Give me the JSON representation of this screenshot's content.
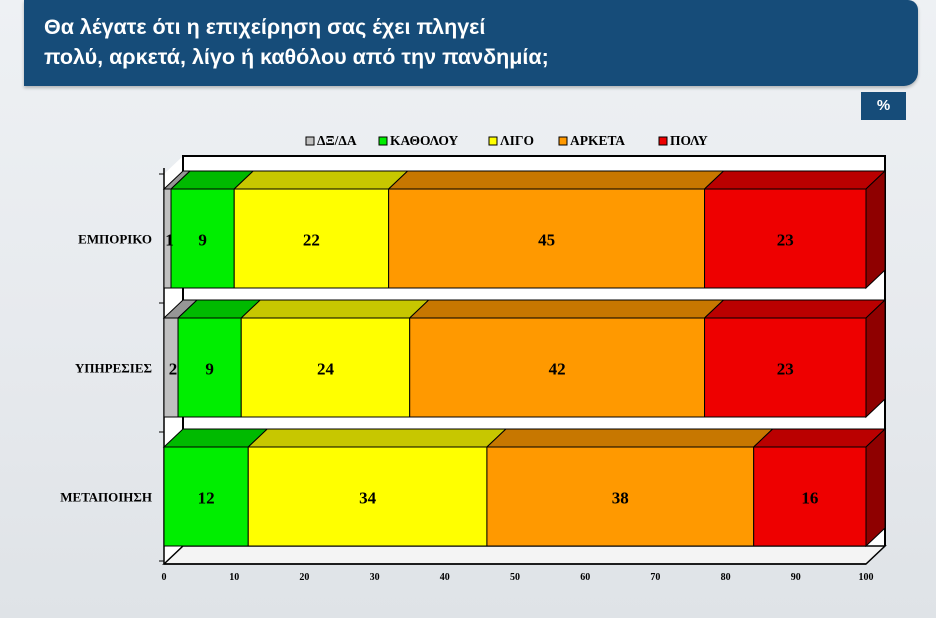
{
  "header": {
    "title": "Θα λέγατε ότι η επιχείρηση σας έχει πληγεί\nπολύ, αρκετά, λίγο ή καθόλου από την πανδημία;"
  },
  "unit_badge": "%",
  "colors": {
    "header_bg": "#164c79",
    "ΔΞ/ΔΑ": "#c0c0c0",
    "ΚΑΘΟΛΟΥ": "#00ee00",
    "ΛΙΓΟ": "#ffff00",
    "ΑΡΚΕΤΑ": "#ff9900",
    "ΠΟΛΥ": "#ee0000"
  },
  "chart_data": {
    "type": "bar",
    "orientation": "horizontal",
    "stacked": true,
    "style": "3d",
    "categories": [
      "ΕΜΠΟΡΙΚΟ",
      "ΥΠΗΡΕΣΙΕΣ",
      "ΜΕΤΑΠΟΙΗΣΗ"
    ],
    "series": [
      {
        "name": "ΔΞ/ΔΑ",
        "values": [
          1,
          2,
          0
        ],
        "color": "#c0c0c0"
      },
      {
        "name": "ΚΑΘΟΛΟΥ",
        "values": [
          9,
          9,
          12
        ],
        "color": "#00ee00"
      },
      {
        "name": "ΛΙΓΟ",
        "values": [
          22,
          24,
          34
        ],
        "color": "#ffff00"
      },
      {
        "name": "ΑΡΚΕΤΑ",
        "values": [
          45,
          42,
          38
        ],
        "color": "#ff9900"
      },
      {
        "name": "ΠΟΛΥ",
        "values": [
          23,
          23,
          16
        ],
        "color": "#ee0000"
      }
    ],
    "xlim": [
      0,
      100
    ],
    "xticks": [
      0,
      10,
      20,
      30,
      40,
      50,
      60,
      70,
      80,
      90,
      100
    ],
    "legend_position": "top",
    "grid": false
  }
}
